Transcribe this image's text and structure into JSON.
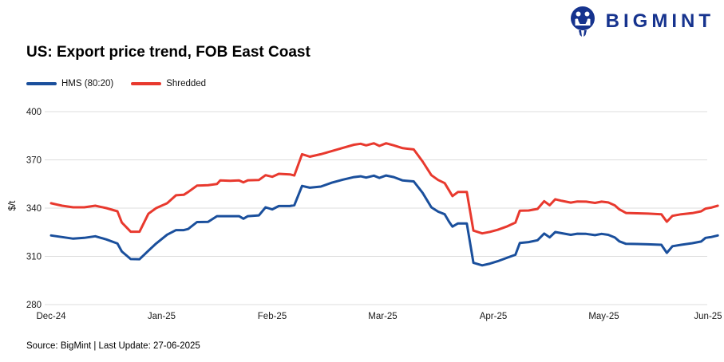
{
  "logo": {
    "text": "BIGMINT",
    "color": "#16338e"
  },
  "title": "US: Export price trend, FOB East Coast",
  "legend": [
    {
      "label": "HMS (80:20)",
      "color": "#1a4f9c"
    },
    {
      "label": "Shredded",
      "color": "#e8392e"
    }
  ],
  "footer": "Source: BigMint | Last Update: 27-06-2025",
  "chart_data": {
    "type": "line",
    "title": "US: Export price trend, FOB East Coast",
    "xlabel": "",
    "ylabel": "$/t",
    "ylim": [
      280,
      400
    ],
    "yticks": [
      280,
      310,
      340,
      370,
      400
    ],
    "grid": "horizontal",
    "legend_position": "top-left",
    "x_axis": {
      "unit": "months since Dec-24",
      "tick_positions": [
        0,
        1,
        2,
        3,
        4,
        5,
        6
      ],
      "tick_labels": [
        "Dec-24",
        "Jan-25",
        "Feb-25",
        "Mar-25",
        "Apr-25",
        "May-25",
        "Jun-25"
      ]
    },
    "series": [
      {
        "name": "HMS (80:20)",
        "color": "#1a4f9c",
        "points": [
          [
            0,
            323
          ],
          [
            0.1,
            322
          ],
          [
            0.2,
            321
          ],
          [
            0.3,
            321.5
          ],
          [
            0.4,
            322.5
          ],
          [
            0.5,
            320.5
          ],
          [
            0.6,
            318
          ],
          [
            0.64,
            313
          ],
          [
            0.72,
            308.3
          ],
          [
            0.8,
            308.2
          ],
          [
            0.88,
            313.5
          ],
          [
            0.95,
            318
          ],
          [
            1.05,
            323.5
          ],
          [
            1.13,
            326.3
          ],
          [
            1.2,
            326.3
          ],
          [
            1.24,
            327
          ],
          [
            1.32,
            331.3
          ],
          [
            1.42,
            331.4
          ],
          [
            1.5,
            335
          ],
          [
            1.62,
            335
          ],
          [
            1.7,
            335
          ],
          [
            1.74,
            333.4
          ],
          [
            1.78,
            335
          ],
          [
            1.88,
            335.5
          ],
          [
            1.94,
            340.5
          ],
          [
            2,
            339.2
          ],
          [
            2.06,
            341.3
          ],
          [
            2.16,
            341.3
          ],
          [
            2.2,
            341.8
          ],
          [
            2.27,
            353.8
          ],
          [
            2.34,
            352.7
          ],
          [
            2.44,
            353.4
          ],
          [
            2.54,
            355.8
          ],
          [
            2.64,
            357.7
          ],
          [
            2.74,
            359.3
          ],
          [
            2.8,
            359.8
          ],
          [
            2.85,
            359
          ],
          [
            2.92,
            360.2
          ],
          [
            2.97,
            358.8
          ],
          [
            3.03,
            360.3
          ],
          [
            3.1,
            359.3
          ],
          [
            3.18,
            357.2
          ],
          [
            3.28,
            356.6
          ],
          [
            3.36,
            349.5
          ],
          [
            3.44,
            340.5
          ],
          [
            3.5,
            337.8
          ],
          [
            3.56,
            336.2
          ],
          [
            3.6,
            331.5
          ],
          [
            3.63,
            328.5
          ],
          [
            3.68,
            330.5
          ],
          [
            3.76,
            330.5
          ],
          [
            3.82,
            306
          ],
          [
            3.9,
            304.4
          ],
          [
            3.97,
            305.5
          ],
          [
            4.04,
            307
          ],
          [
            4.12,
            309
          ],
          [
            4.2,
            311
          ],
          [
            4.24,
            318.3
          ],
          [
            4.32,
            318.9
          ],
          [
            4.4,
            320
          ],
          [
            4.46,
            324.2
          ],
          [
            4.51,
            321.8
          ],
          [
            4.56,
            325.1
          ],
          [
            4.62,
            324.4
          ],
          [
            4.7,
            323.4
          ],
          [
            4.76,
            324.1
          ],
          [
            4.84,
            324
          ],
          [
            4.92,
            323.2
          ],
          [
            4.98,
            324
          ],
          [
            5.04,
            323.4
          ],
          [
            5.1,
            321.7
          ],
          [
            5.14,
            319.3
          ],
          [
            5.2,
            317.8
          ],
          [
            5.3,
            317.7
          ],
          [
            5.4,
            317.5
          ],
          [
            5.52,
            317.2
          ],
          [
            5.57,
            312.2
          ],
          [
            5.62,
            316.3
          ],
          [
            5.7,
            317.2
          ],
          [
            5.8,
            318.2
          ],
          [
            5.88,
            319.2
          ],
          [
            5.92,
            321.5
          ],
          [
            5.97,
            322
          ],
          [
            6.03,
            323
          ]
        ]
      },
      {
        "name": "Shredded",
        "color": "#e8392e",
        "points": [
          [
            0,
            343
          ],
          [
            0.1,
            341.5
          ],
          [
            0.2,
            340.5
          ],
          [
            0.3,
            340.5
          ],
          [
            0.4,
            341.5
          ],
          [
            0.5,
            340
          ],
          [
            0.6,
            338
          ],
          [
            0.64,
            331
          ],
          [
            0.72,
            325.3
          ],
          [
            0.8,
            325.3
          ],
          [
            0.88,
            336.5
          ],
          [
            0.95,
            340
          ],
          [
            1.05,
            343
          ],
          [
            1.13,
            348
          ],
          [
            1.2,
            348.3
          ],
          [
            1.24,
            350
          ],
          [
            1.32,
            354
          ],
          [
            1.42,
            354.3
          ],
          [
            1.5,
            355
          ],
          [
            1.53,
            357.2
          ],
          [
            1.62,
            357
          ],
          [
            1.7,
            357.2
          ],
          [
            1.74,
            356
          ],
          [
            1.78,
            357.3
          ],
          [
            1.88,
            357.5
          ],
          [
            1.94,
            360.5
          ],
          [
            2,
            359.5
          ],
          [
            2.06,
            361.3
          ],
          [
            2.16,
            361
          ],
          [
            2.2,
            360.3
          ],
          [
            2.27,
            373.5
          ],
          [
            2.34,
            372
          ],
          [
            2.44,
            373.5
          ],
          [
            2.54,
            375.5
          ],
          [
            2.64,
            377.5
          ],
          [
            2.74,
            379.4
          ],
          [
            2.8,
            380
          ],
          [
            2.85,
            379
          ],
          [
            2.92,
            380.3
          ],
          [
            2.97,
            378.7
          ],
          [
            3.03,
            380.3
          ],
          [
            3.1,
            379
          ],
          [
            3.18,
            377.3
          ],
          [
            3.28,
            376.5
          ],
          [
            3.36,
            369
          ],
          [
            3.44,
            360.5
          ],
          [
            3.5,
            357.5
          ],
          [
            3.56,
            355.5
          ],
          [
            3.6,
            351
          ],
          [
            3.63,
            347.5
          ],
          [
            3.68,
            350
          ],
          [
            3.76,
            350
          ],
          [
            3.82,
            326
          ],
          [
            3.9,
            324.3
          ],
          [
            3.97,
            325.2
          ],
          [
            4.04,
            326.5
          ],
          [
            4.12,
            328.5
          ],
          [
            4.2,
            331
          ],
          [
            4.24,
            338.4
          ],
          [
            4.32,
            338.5
          ],
          [
            4.4,
            339.5
          ],
          [
            4.46,
            344.3
          ],
          [
            4.51,
            341.8
          ],
          [
            4.56,
            345.5
          ],
          [
            4.62,
            344.5
          ],
          [
            4.7,
            343.4
          ],
          [
            4.76,
            344.1
          ],
          [
            4.84,
            344
          ],
          [
            4.92,
            343.2
          ],
          [
            4.98,
            344
          ],
          [
            5.04,
            343.5
          ],
          [
            5.1,
            341.7
          ],
          [
            5.14,
            339.2
          ],
          [
            5.2,
            337
          ],
          [
            5.3,
            336.8
          ],
          [
            5.4,
            336.6
          ],
          [
            5.52,
            336.2
          ],
          [
            5.57,
            331.5
          ],
          [
            5.62,
            335.2
          ],
          [
            5.7,
            336.2
          ],
          [
            5.8,
            336.9
          ],
          [
            5.88,
            338
          ],
          [
            5.92,
            339.7
          ],
          [
            5.97,
            340.3
          ],
          [
            6.03,
            341.5
          ]
        ]
      }
    ]
  }
}
